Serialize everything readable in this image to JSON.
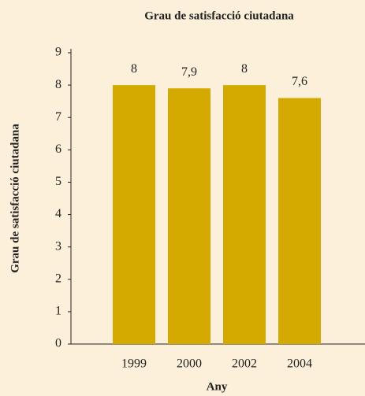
{
  "chart_data": {
    "type": "bar",
    "title": "Grau de satisfacció ciutadana",
    "x_label": "Any",
    "y_label": "Grau de satisfacció ciutadana",
    "categories": [
      "1999",
      "2000",
      "2002",
      "2004"
    ],
    "values": [
      8,
      7.9,
      8,
      7.6
    ],
    "value_labels": [
      "8",
      "7,9",
      "8",
      "7,6"
    ],
    "color": "#d4a900",
    "ylim": [
      0,
      9
    ],
    "yticks": [
      0,
      1,
      2,
      3,
      4,
      5,
      6,
      7,
      8,
      9
    ],
    "grid": false
  }
}
